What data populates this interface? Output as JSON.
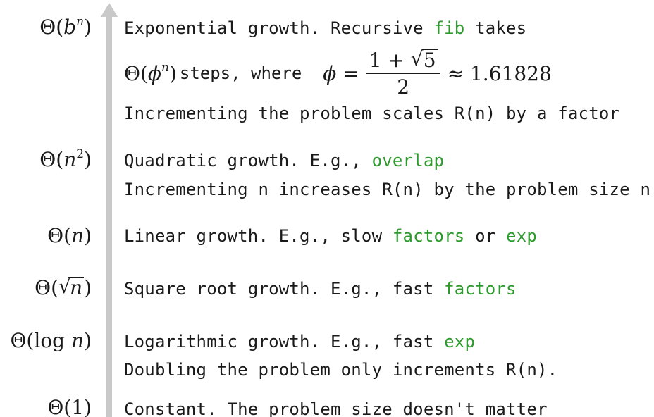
{
  "rows": [
    {
      "label": {
        "pre": "Θ(",
        "var": "b",
        "sup": "n",
        "post": ")"
      },
      "line1": {
        "pre": "Exponential growth.  Recursive ",
        "code": "fib",
        "post": " takes"
      },
      "formula": {
        "theta_pre": "Θ(",
        "theta_var": "ϕ",
        "theta_sup": "n",
        "theta_post": ")",
        "steps_text": " steps, where",
        "phi_lhs": "ϕ =",
        "num_pre": "1 + ",
        "num_radicand": "5",
        "den": "2",
        "approx": "≈ 1.61828"
      },
      "line3": "Incrementing the problem scales R(n) by a factor"
    },
    {
      "label": {
        "pre": "Θ(",
        "var": "n",
        "sup": "2",
        "post": ")"
      },
      "line1": {
        "pre": "Quadratic growth.  E.g., ",
        "code": "overlap"
      },
      "line2": "Incrementing n increases R(n) by the problem size n"
    },
    {
      "label": {
        "pre": "Θ(",
        "var": "n",
        "post": ")"
      },
      "line1": {
        "pre": "Linear growth.  E.g., slow ",
        "code1": "factors",
        "mid": " or ",
        "code2": "exp"
      }
    },
    {
      "label": {
        "pre": "Θ(",
        "radicand": "n",
        "post": ")"
      },
      "line1": {
        "pre": "Square root growth.  E.g., fast ",
        "code": "factors"
      }
    },
    {
      "label": {
        "pre": "Θ(",
        "fn": "log",
        "var": "n",
        "post": ")"
      },
      "line1": {
        "pre": "Logarithmic growth. E.g., fast ",
        "code": "exp"
      },
      "line2": "Doubling the problem only increments R(n)."
    },
    {
      "label": {
        "pre": "Θ(",
        "num": "1",
        "post": ")"
      },
      "line1": "Constant. The problem size doesn't matter"
    }
  ],
  "colors": {
    "code_green": "#2e9a2e",
    "axis_gray": "#c9c9c9",
    "text": "#1a1a1a"
  }
}
